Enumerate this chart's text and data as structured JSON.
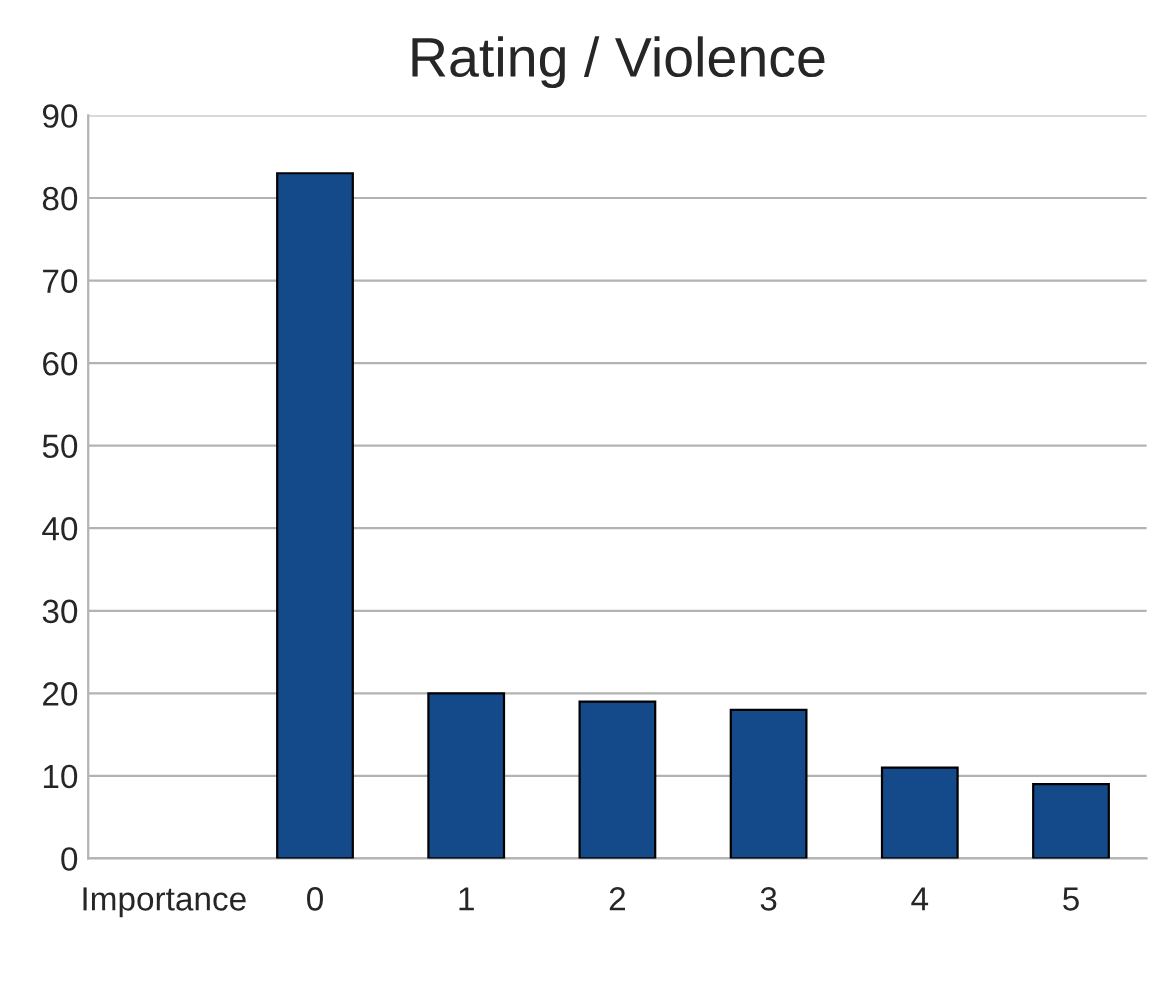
{
  "chart_data": {
    "type": "bar",
    "title": "Rating / Violence",
    "categories": [
      "Importance",
      "0",
      "1",
      "2",
      "3",
      "4",
      "5"
    ],
    "values": [
      null,
      83,
      20,
      19,
      18,
      11,
      9
    ],
    "color": "#144a8a",
    "ylim": [
      0,
      90
    ],
    "yticks": [
      0,
      10,
      20,
      30,
      40,
      50,
      60,
      70,
      80,
      90
    ],
    "grid": "y",
    "legend": false
  }
}
